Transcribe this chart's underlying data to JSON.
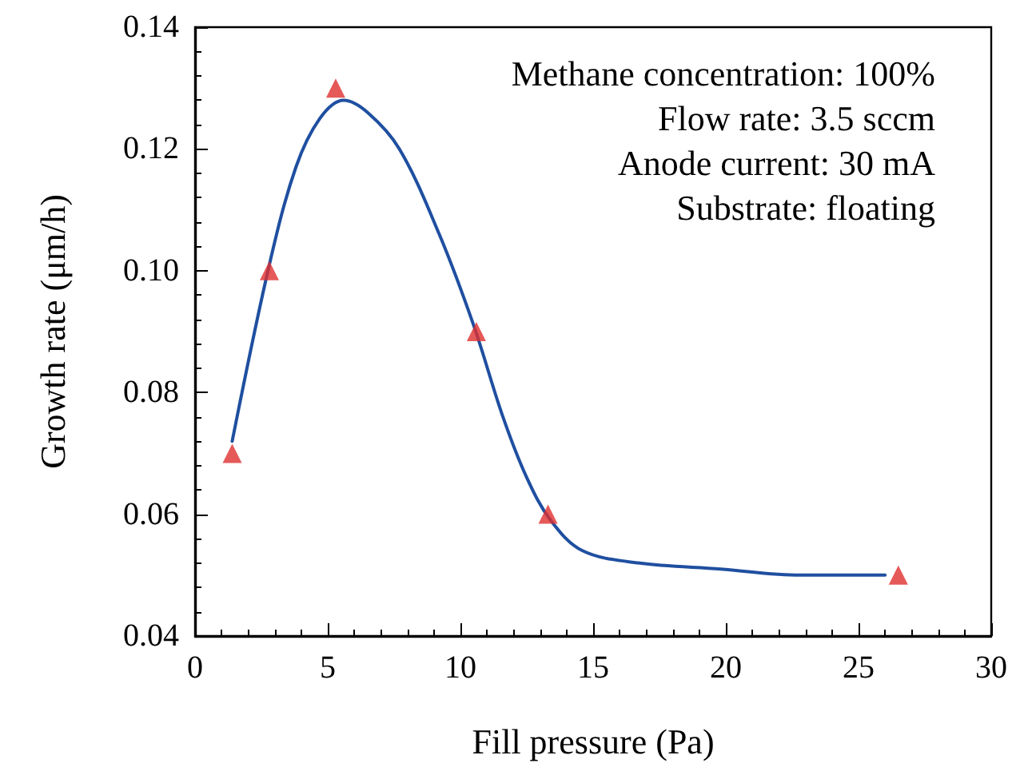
{
  "chart_data": {
    "type": "scatter",
    "xlabel": "Fill pressure (Pa)",
    "ylabel": "Growth rate (μm/h)",
    "xlim": [
      0,
      30
    ],
    "xticks": [
      0,
      5,
      10,
      15,
      20,
      25,
      30
    ],
    "ylim": [
      0.04,
      0.14
    ],
    "yticks": [
      0.04,
      0.06,
      0.08,
      {
        "value": 0.1,
        "label": "0.10"
      },
      0.12,
      0.14
    ],
    "grid": false,
    "annotations": [
      "Methane concentration: 100%",
      "Flow rate: 3.5 sccm",
      "Anode current: 30 mA",
      "Substrate: floating"
    ],
    "series": [
      {
        "type": "line",
        "color": "#1f4fa0",
        "marker": "none",
        "line_style": "solid",
        "x": [
          1.4,
          2.8,
          3.8,
          4.7,
          5.6,
          6.5,
          7.7,
          9.2,
          10.5,
          11.6,
          12.5,
          13.4,
          14.6,
          16.7,
          19.8,
          22.8,
          26.0
        ],
        "values": [
          0.072,
          0.101,
          0.117,
          0.125,
          0.128,
          0.126,
          0.12,
          0.106,
          0.091,
          0.076,
          0.066,
          0.059,
          0.054,
          0.052,
          0.051,
          0.05,
          0.05
        ]
      },
      {
        "color": "#e03030",
        "marker": "triangle",
        "x": [
          1.4,
          2.8,
          5.3,
          10.6,
          13.3,
          26.5
        ],
        "values": [
          0.07,
          0.1,
          0.13,
          0.09,
          0.06,
          0.05
        ]
      }
    ]
  }
}
